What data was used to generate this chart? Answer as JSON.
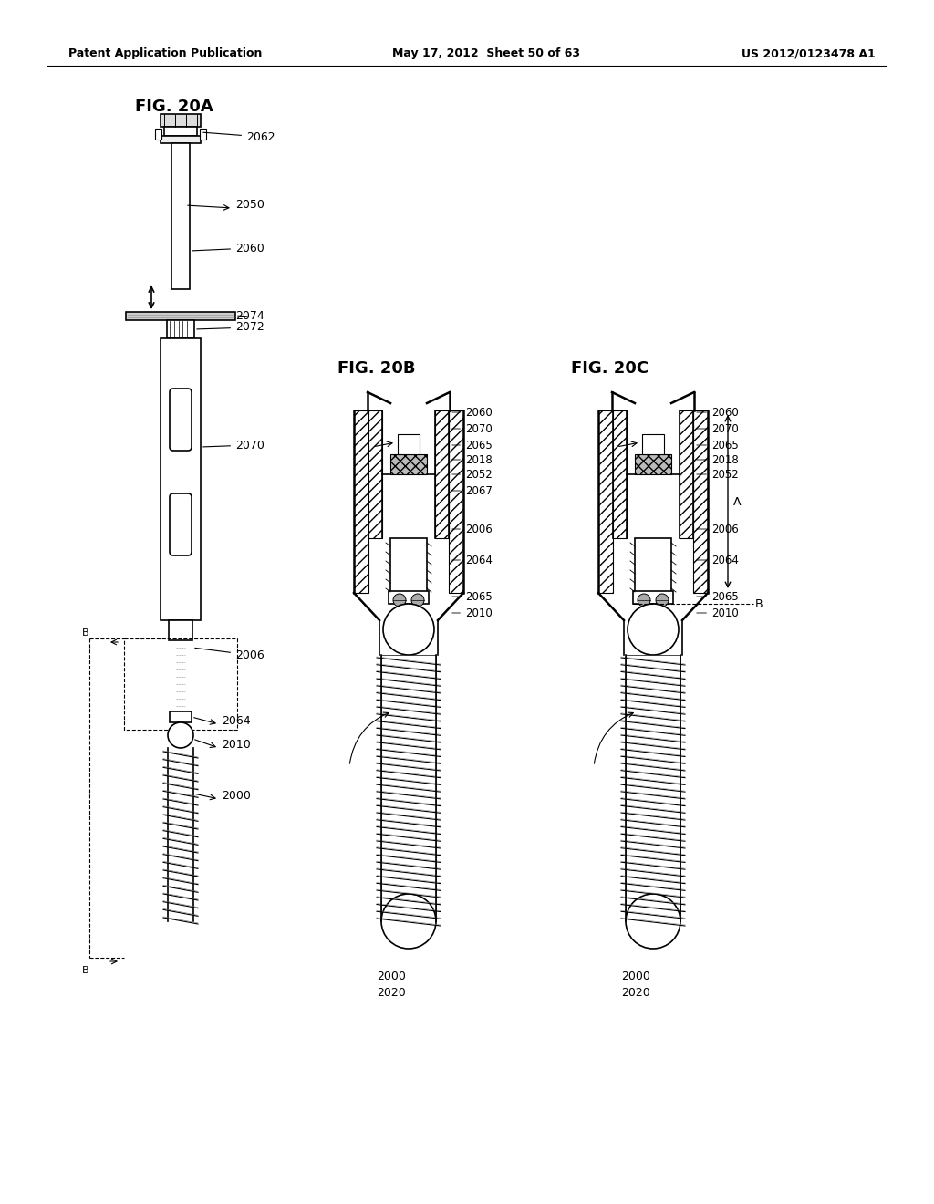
{
  "header_left": "Patent Application Publication",
  "header_mid": "May 17, 2012  Sheet 50 of 63",
  "header_right": "US 2012/0123478 A1",
  "fig_20a_label": "FIG. 20A",
  "fig_20b_label": "FIG. 20B",
  "fig_20c_label": "FIG. 20C",
  "background_color": "#ffffff",
  "line_color": "#000000"
}
